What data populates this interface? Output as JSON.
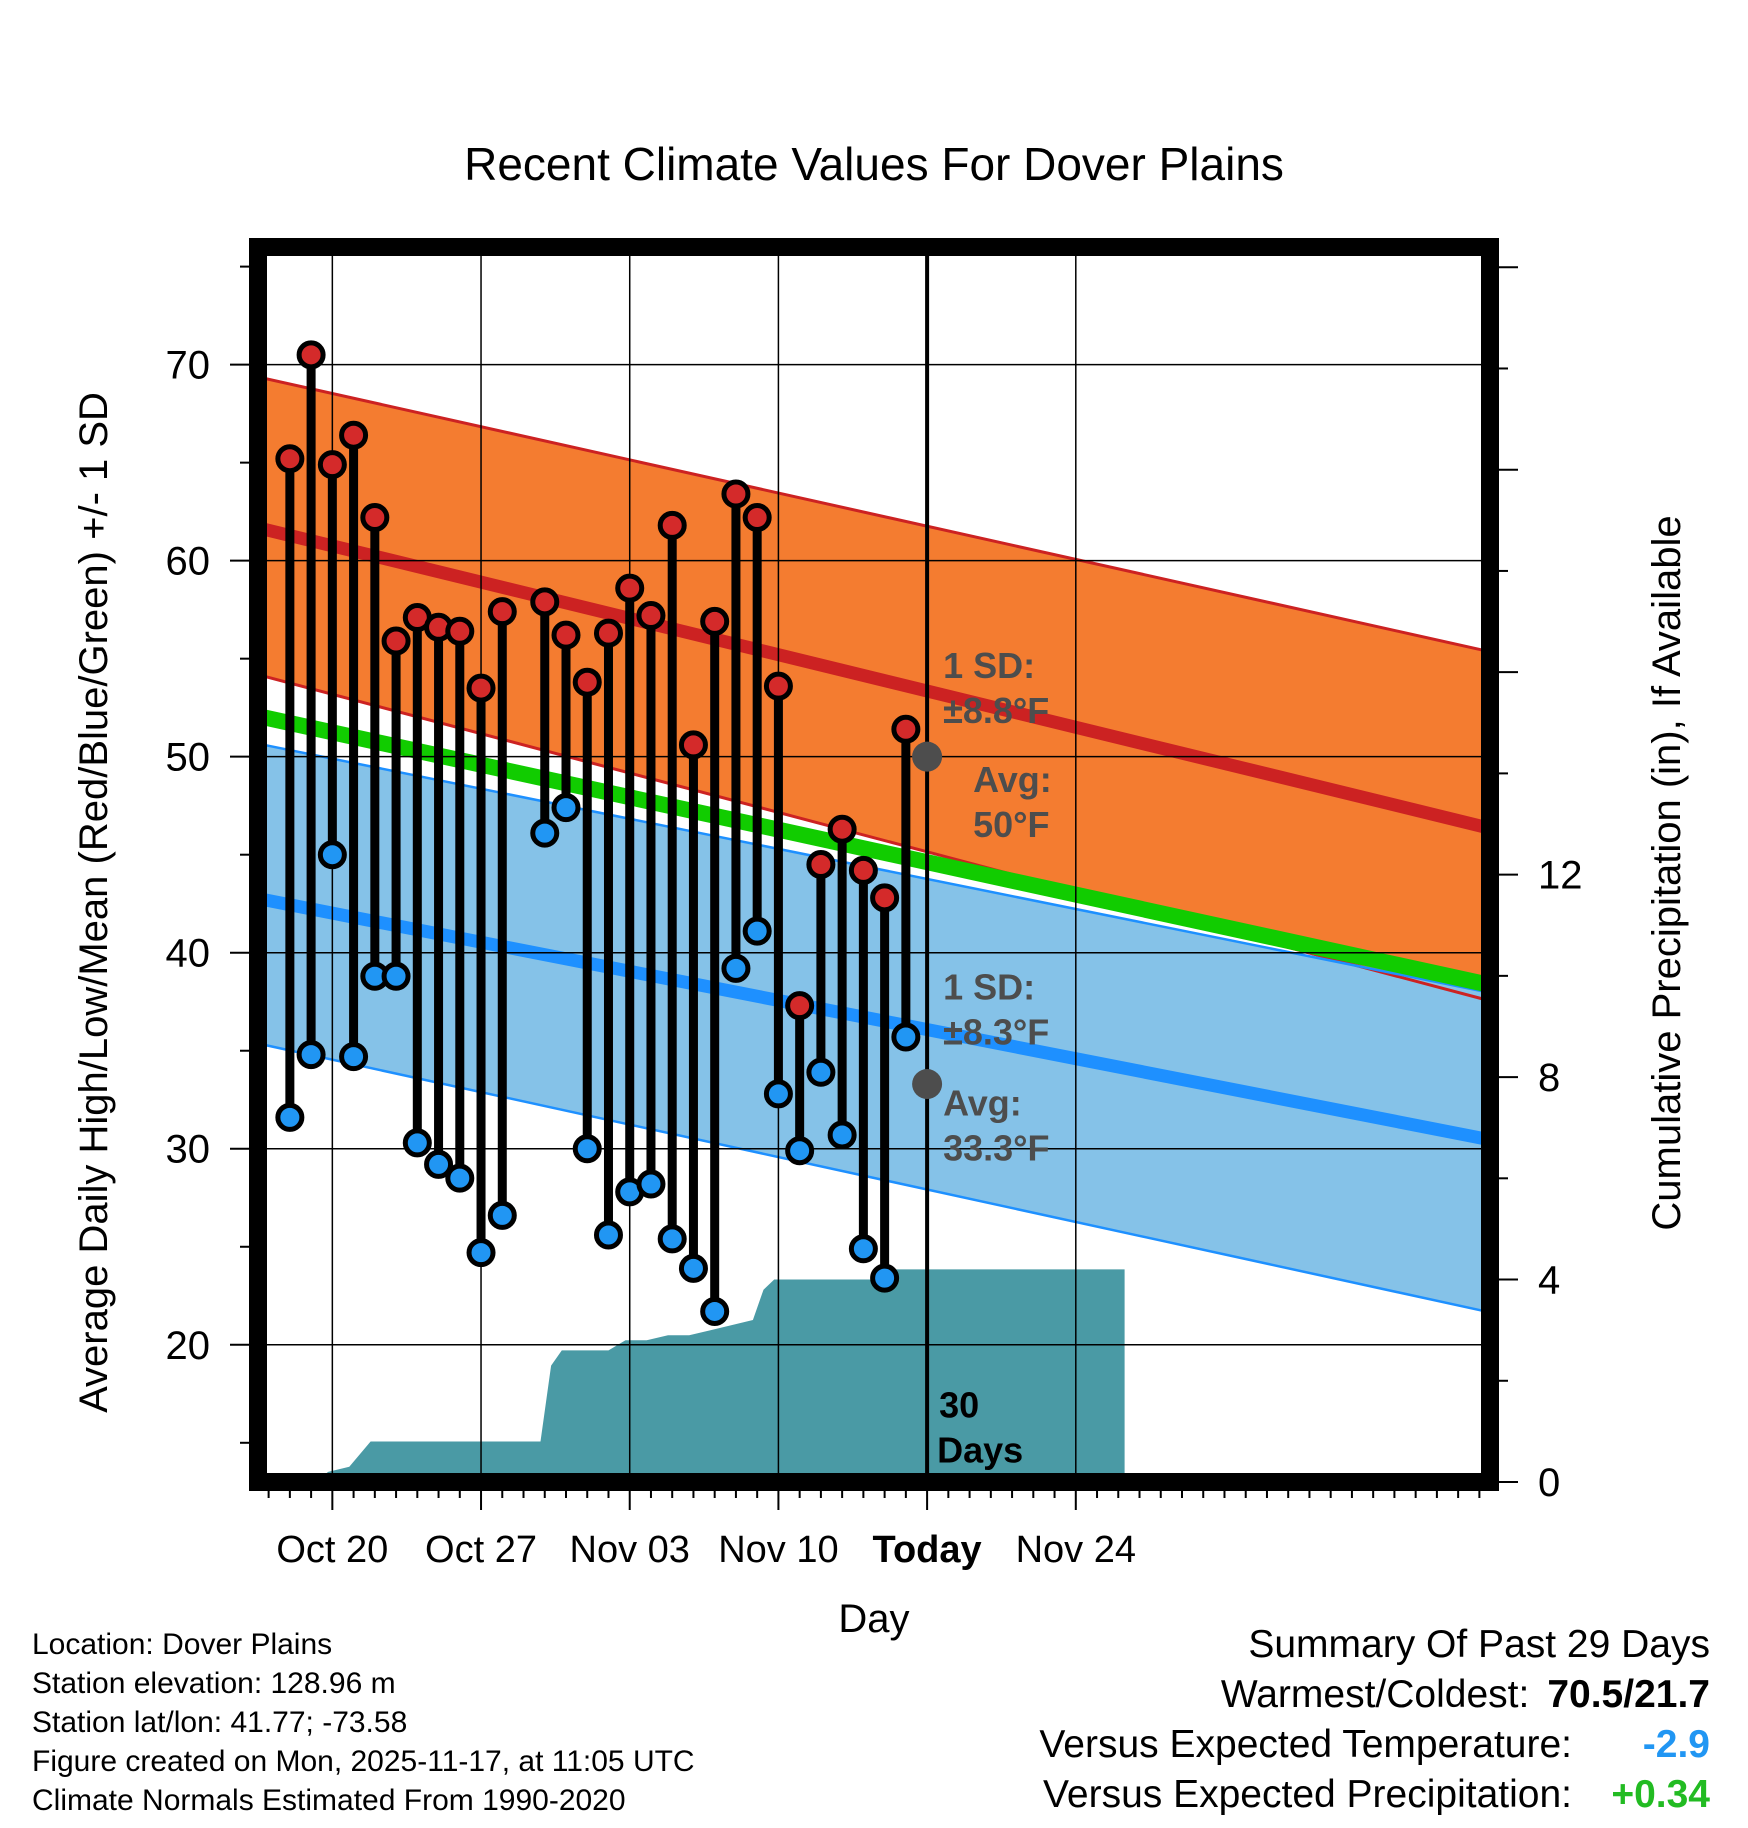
{
  "chart_data": {
    "type": "line",
    "title": "Recent Climate Values For Dover Plains",
    "xlabel": "Day",
    "ylabel": "Average Daily High/Low/Mean (Red/Blue/Green) +/- 1 SD",
    "y2label": "Cumulative Precipitation (in), If Available",
    "xlim": [
      16.5,
      74.5
    ],
    "ylim": [
      13,
      76
    ],
    "y2lim": [
      0,
      24.4
    ],
    "x_ticks": [
      {
        "x": 20,
        "label": "Oct 20"
      },
      {
        "x": 27,
        "label": "Oct 27"
      },
      {
        "x": 34,
        "label": "Nov 03"
      },
      {
        "x": 41,
        "label": "Nov 10"
      },
      {
        "x": 48,
        "label": "Today"
      },
      {
        "x": 55,
        "label": "Nov 24"
      }
    ],
    "y_ticks": [
      20,
      30,
      40,
      50,
      60,
      70
    ],
    "y2_ticks": [
      0,
      4,
      8,
      12
    ],
    "today_x": 48,
    "normals": {
      "high_upper": [
        [
          16.8,
          69.3
        ],
        [
          74.3,
          55.4
        ]
      ],
      "high_mean": [
        [
          16.8,
          61.6
        ],
        [
          74.3,
          46.4
        ]
      ],
      "high_lower": [
        [
          16.8,
          54.1
        ],
        [
          74.3,
          37.6
        ]
      ],
      "mean": [
        [
          16.8,
          52.0
        ],
        [
          74.3,
          38.4
        ]
      ],
      "low_upper": [
        [
          16.8,
          50.6
        ],
        [
          74.3,
          38.0
        ]
      ],
      "low_mean": [
        [
          16.8,
          42.7
        ],
        [
          74.3,
          30.5
        ]
      ],
      "low_lower": [
        [
          16.8,
          35.3
        ],
        [
          74.3,
          21.7
        ]
      ]
    },
    "days": [
      {
        "x": 18,
        "high": 65.2,
        "low": 31.6
      },
      {
        "x": 19,
        "high": 70.5,
        "low": 34.8
      },
      {
        "x": 20,
        "high": 64.9,
        "low": 45.0
      },
      {
        "x": 21,
        "high": 66.4,
        "low": 34.7
      },
      {
        "x": 22,
        "high": 62.2,
        "low": 38.8
      },
      {
        "x": 23,
        "high": 55.9,
        "low": 38.8
      },
      {
        "x": 24,
        "high": 57.1,
        "low": 30.3
      },
      {
        "x": 25,
        "high": 56.6,
        "low": 29.2
      },
      {
        "x": 26,
        "high": 56.4,
        "low": 28.5
      },
      {
        "x": 27,
        "high": 53.5,
        "low": 24.7
      },
      {
        "x": 28,
        "high": 57.4,
        "low": 26.6
      },
      {
        "x": 30,
        "high": 57.9,
        "low": 46.1
      },
      {
        "x": 31,
        "high": 56.2,
        "low": 47.4
      },
      {
        "x": 32,
        "high": 53.8,
        "low": 30.0
      },
      {
        "x": 33,
        "high": 56.3,
        "low": 25.6
      },
      {
        "x": 34,
        "high": 58.6,
        "low": 27.8
      },
      {
        "x": 35,
        "high": 57.2,
        "low": 28.2
      },
      {
        "x": 36,
        "high": 61.8,
        "low": 25.4
      },
      {
        "x": 37,
        "high": 50.6,
        "low": 23.9
      },
      {
        "x": 38,
        "high": 56.9,
        "low": 21.7
      },
      {
        "x": 39,
        "high": 63.4,
        "low": 39.2
      },
      {
        "x": 40,
        "high": 62.2,
        "low": 41.1
      },
      {
        "x": 41,
        "high": 53.6,
        "low": 32.8
      },
      {
        "x": 42,
        "high": 37.3,
        "low": 29.9
      },
      {
        "x": 43,
        "high": 44.5,
        "low": 33.9
      },
      {
        "x": 44,
        "high": 46.3,
        "low": 30.7
      },
      {
        "x": 45,
        "high": 44.2,
        "low": 24.9
      },
      {
        "x": 46,
        "high": 42.8,
        "low": 23.4
      },
      {
        "x": 47,
        "high": 51.4,
        "low": 35.7
      }
    ],
    "avg_points": [
      {
        "x": 48,
        "value": 50.0
      },
      {
        "x": 48,
        "value": 33.3
      }
    ],
    "precip_cumulative": [
      [
        19.2,
        0.0
      ],
      [
        19.8,
        0.2
      ],
      [
        20.8,
        0.3
      ],
      [
        21.8,
        0.8
      ],
      [
        22.5,
        0.8
      ],
      [
        23.8,
        0.8
      ],
      [
        25.5,
        0.8
      ],
      [
        27.5,
        0.8
      ],
      [
        29.8,
        0.8
      ],
      [
        30.3,
        2.3
      ],
      [
        30.8,
        2.6
      ],
      [
        32.0,
        2.6
      ],
      [
        33.0,
        2.6
      ],
      [
        33.8,
        2.8
      ],
      [
        34.8,
        2.8
      ],
      [
        35.8,
        2.9
      ],
      [
        36.8,
        2.9
      ],
      [
        37.8,
        3.0
      ],
      [
        38.8,
        3.1
      ],
      [
        39.8,
        3.2
      ],
      [
        40.3,
        3.8
      ],
      [
        40.8,
        4.0
      ],
      [
        43.5,
        4.0
      ],
      [
        44.5,
        4.0
      ],
      [
        45.5,
        4.0
      ],
      [
        46.0,
        4.2
      ],
      [
        46.8,
        4.2
      ],
      [
        48.0,
        4.2
      ],
      [
        55.0,
        4.2
      ],
      [
        57.3,
        4.2
      ]
    ],
    "annotations": {
      "high_sd": "1 SD:",
      "high_sd_value": "±8.8°F",
      "high_avg": "Avg:",
      "high_avg_value": "50°F",
      "low_sd": "1 SD:",
      "low_sd_value": "±8.3°F",
      "low_avg": "Avg:",
      "low_avg_value": "33.3°F",
      "days_count": "30",
      "days_label": "Days"
    },
    "colors": {
      "high_band": "#f47c30",
      "high_line": "#cc2222",
      "low_band": "#85c2e8",
      "low_line": "#1e90ff",
      "mean_line": "#11cc00",
      "precip": "#4a9aa5",
      "high_dot": "#d42a2a",
      "low_dot": "#2196f3",
      "avg_dot": "#4d4d4d",
      "annotation": "#4d4d4d"
    }
  },
  "footer": {
    "location": "Location: Dover Plains",
    "elevation": "Station elevation: 128.96 m",
    "latlon": "Station lat/lon: 41.77; -73.58",
    "created": "Figure created on Mon, 2025-11-17, at 11:05 UTC",
    "normals": "Climate Normals Estimated From 1990-2020"
  },
  "summary": {
    "title": "Summary Of Past 29 Days",
    "warmest_coldest_label": "Warmest/Coldest:",
    "warmest_coldest_value": "70.5/21.7",
    "temp_label": "Versus Expected Temperature:",
    "temp_value": "-2.9",
    "precip_label": "Versus Expected Precipitation:",
    "precip_value": "+0.34"
  }
}
